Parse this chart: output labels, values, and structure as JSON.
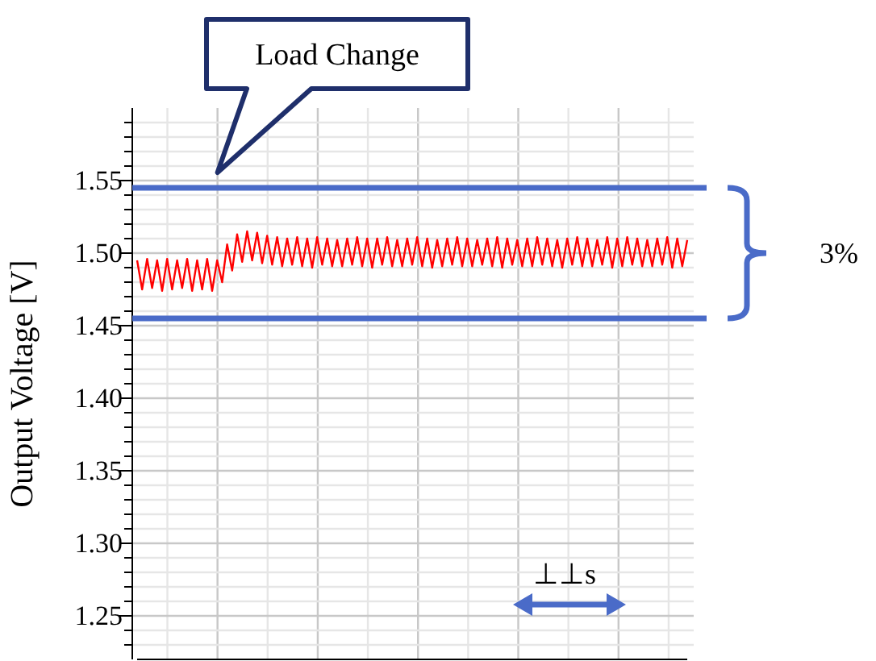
{
  "chart_data": {
    "type": "line",
    "ylabel": "Output Voltage [V]",
    "ylim": [
      1.22,
      1.6
    ],
    "categories": [
      null,
      null,
      null,
      null,
      null,
      null,
      null,
      null,
      null,
      null,
      null,
      null,
      null,
      null,
      null,
      null,
      null,
      null,
      null,
      null,
      null,
      null,
      null,
      null,
      null,
      null,
      null,
      null,
      null,
      null,
      null,
      null,
      null,
      null,
      null,
      null,
      null,
      null,
      null,
      null,
      null,
      null,
      null,
      null,
      null,
      null,
      null,
      null,
      null,
      null,
      null,
      null,
      null,
      null,
      null,
      null,
      null,
      null,
      null,
      null,
      null,
      null,
      null,
      null,
      null,
      null,
      null,
      null,
      null,
      null,
      null,
      null,
      null,
      null,
      null,
      null,
      null,
      null,
      null,
      null,
      null,
      null,
      null,
      null,
      null,
      null,
      null,
      null,
      null,
      null,
      null,
      null,
      null,
      null,
      null,
      null,
      null,
      null,
      null,
      null,
      null,
      null,
      null,
      null,
      null,
      null,
      null,
      null,
      null,
      null,
      null
    ],
    "yticks": [
      {
        "value": 1.23,
        "label": null
      },
      {
        "value": 1.24,
        "label": null
      },
      {
        "value": 1.25,
        "label": "1.25"
      },
      {
        "value": 1.26,
        "label": null
      },
      {
        "value": 1.27,
        "label": null
      },
      {
        "value": 1.28,
        "label": null
      },
      {
        "value": 1.29,
        "label": null
      },
      {
        "value": 1.3,
        "label": "1.30"
      },
      {
        "value": 1.31,
        "label": null
      },
      {
        "value": 1.32,
        "label": null
      },
      {
        "value": 1.33,
        "label": null
      },
      {
        "value": 1.34,
        "label": null
      },
      {
        "value": 1.35,
        "label": "1.35"
      },
      {
        "value": 1.36,
        "label": null
      },
      {
        "value": 1.37,
        "label": null
      },
      {
        "value": 1.38,
        "label": null
      },
      {
        "value": 1.39,
        "label": null
      },
      {
        "value": 1.4,
        "label": "1.40"
      },
      {
        "value": 1.41,
        "label": null
      },
      {
        "value": 1.42,
        "label": null
      },
      {
        "value": 1.43,
        "label": null
      },
      {
        "value": 1.44,
        "label": null
      },
      {
        "value": 1.45,
        "label": "1.45"
      },
      {
        "value": 1.46,
        "label": null
      },
      {
        "value": 1.47,
        "label": null
      },
      {
        "value": 1.48,
        "label": null
      },
      {
        "value": 1.49,
        "label": null
      },
      {
        "value": 1.5,
        "label": "1.50"
      },
      {
        "value": 1.51,
        "label": null
      },
      {
        "value": 1.52,
        "label": null
      },
      {
        "value": 1.53,
        "label": null
      },
      {
        "value": 1.54,
        "label": null
      },
      {
        "value": 1.55,
        "label": "1.55"
      },
      {
        "value": 1.56,
        "label": null
      },
      {
        "value": 1.57,
        "label": null
      },
      {
        "value": 1.58,
        "label": null
      },
      {
        "value": 1.59,
        "label": null
      }
    ],
    "grid": true,
    "series": [
      {
        "color": "#ff0000",
        "values": [
          1.495,
          1.475,
          1.496,
          1.476,
          1.495,
          1.474,
          1.496,
          1.475,
          1.495,
          1.476,
          1.496,
          1.474,
          1.495,
          1.475,
          1.496,
          1.474,
          1.495,
          1.48,
          1.506,
          1.488,
          1.513,
          1.494,
          1.515,
          1.495,
          1.514,
          1.493,
          1.512,
          1.492,
          1.511,
          1.491,
          1.51,
          1.492,
          1.511,
          1.491,
          1.51,
          1.49,
          1.511,
          1.492,
          1.51,
          1.491,
          1.509,
          1.491,
          1.51,
          1.492,
          1.511,
          1.491,
          1.51,
          1.49,
          1.51,
          1.492,
          1.511,
          1.491,
          1.509,
          1.491,
          1.51,
          1.492,
          1.511,
          1.491,
          1.51,
          1.49,
          1.509,
          1.491,
          1.51,
          1.492,
          1.511,
          1.491,
          1.51,
          1.491,
          1.509,
          1.492,
          1.51,
          1.491,
          1.511,
          1.49,
          1.51,
          1.492,
          1.509,
          1.491,
          1.51,
          1.491,
          1.511,
          1.492,
          1.51,
          1.491,
          1.509,
          1.49,
          1.51,
          1.492,
          1.511,
          1.491,
          1.51,
          1.491,
          1.509,
          1.492,
          1.511,
          1.49,
          1.51,
          1.491,
          1.511,
          1.492,
          1.51,
          1.491,
          1.509,
          1.491,
          1.51,
          1.492,
          1.511,
          1.49,
          1.51,
          1.491,
          1.509
        ]
      }
    ],
    "ref_lines": [
      {
        "axis": "y",
        "value": 1.545,
        "color": "#4a6bc8"
      },
      {
        "axis": "y",
        "value": 1.455,
        "color": "#4a6bc8"
      }
    ],
    "annotations": [
      "Load Change",
      "3%",
      "⊥⊥s"
    ]
  }
}
